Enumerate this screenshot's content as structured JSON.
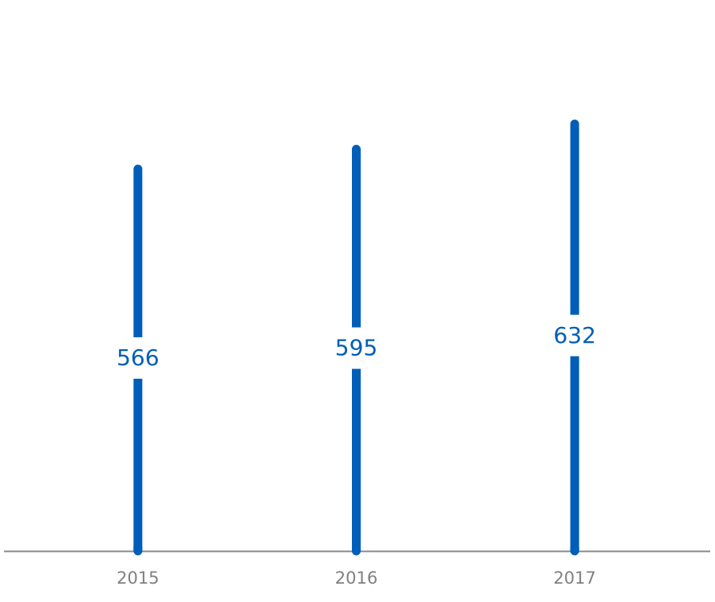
{
  "chart_data": {
    "type": "bar",
    "categories": [
      "2015",
      "2016",
      "2017"
    ],
    "values": [
      566,
      595,
      632
    ],
    "color": "#005eb8",
    "ylim": [
      0,
      808
    ]
  }
}
